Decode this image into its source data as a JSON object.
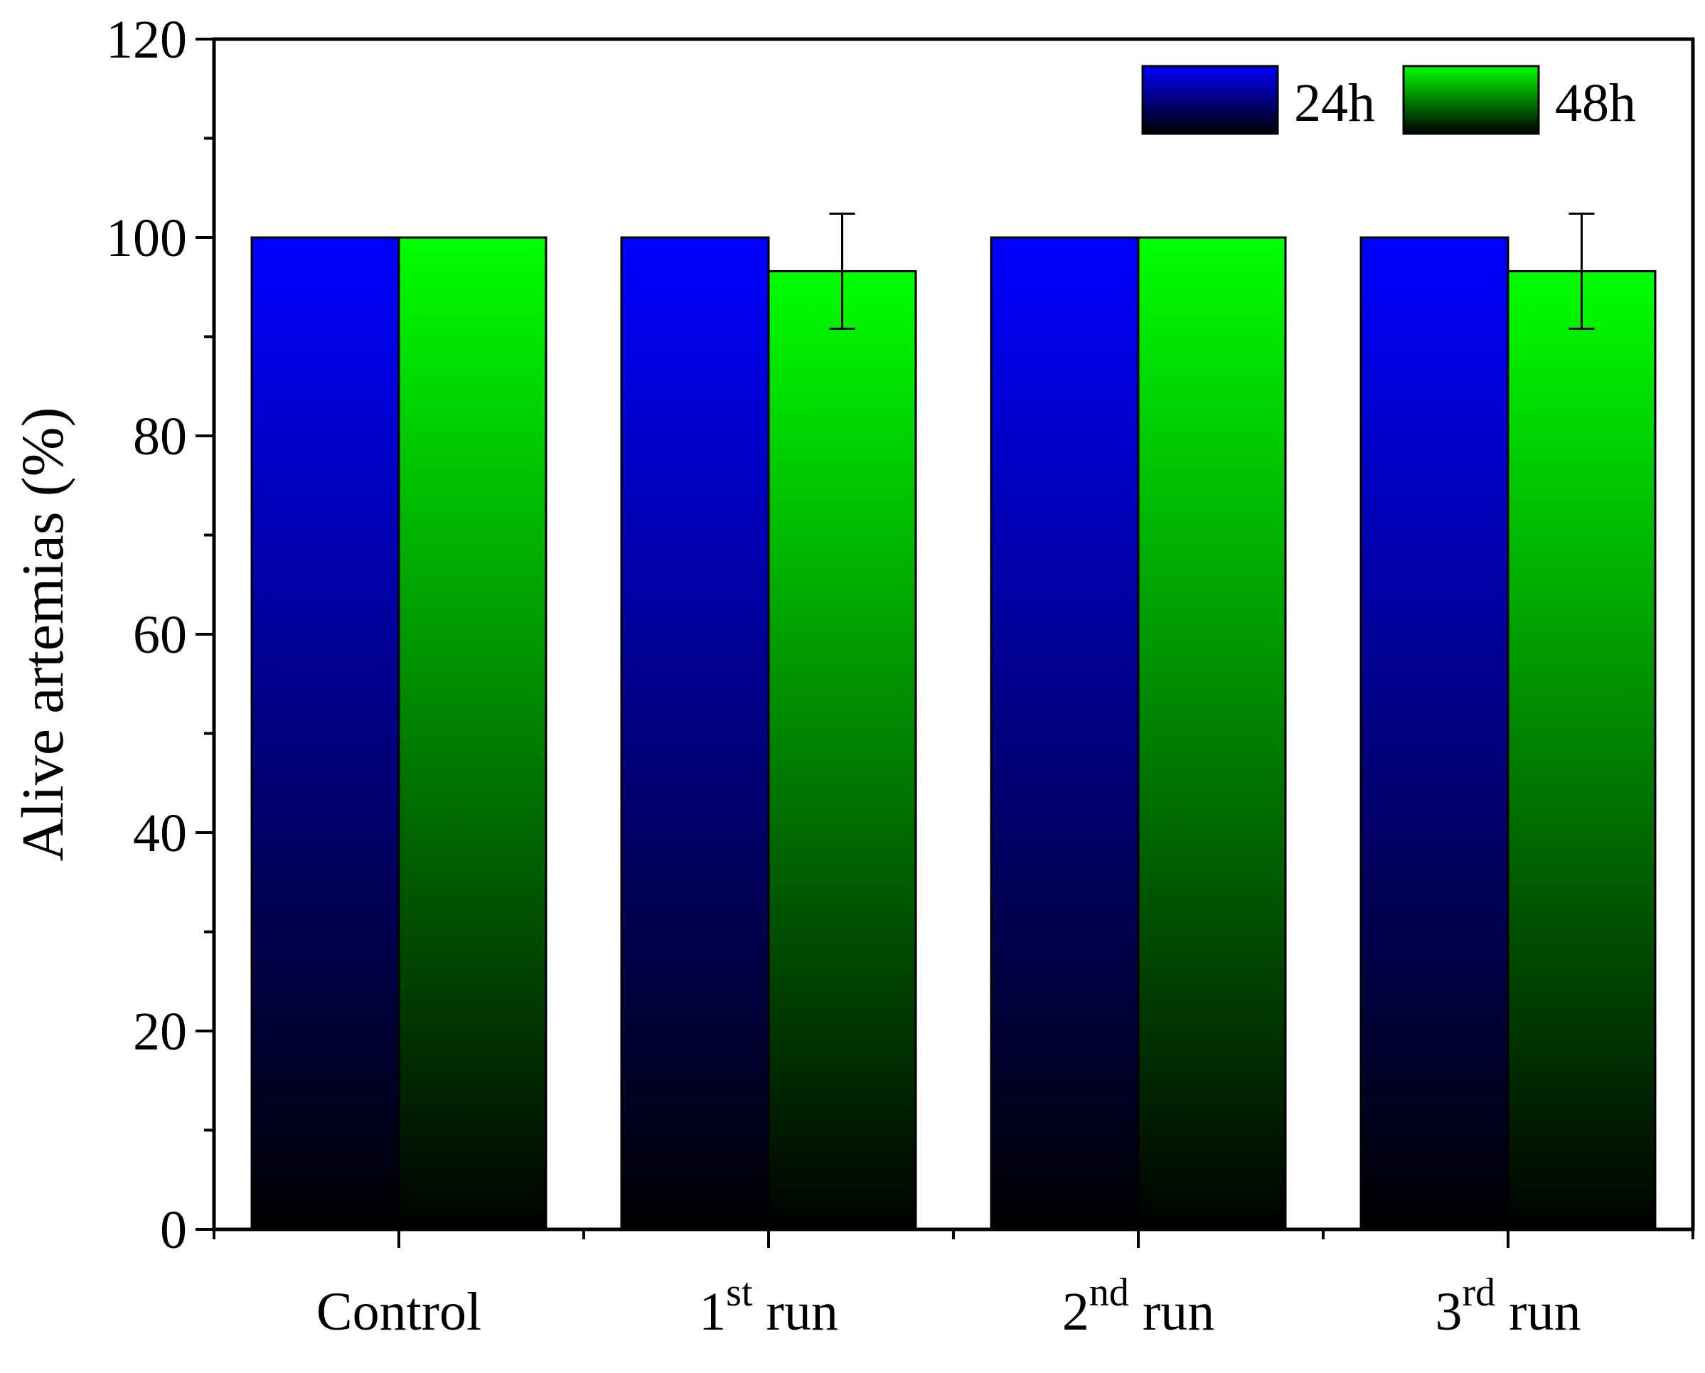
{
  "chart_data": {
    "type": "bar",
    "ylabel": "Alive artemias (%)",
    "xlabel": "",
    "ylim": [
      0,
      120
    ],
    "yticks": [
      "0",
      "20",
      "40",
      "60",
      "80",
      "100",
      "120"
    ],
    "categories": [
      {
        "main": "Control",
        "sup": "",
        "tail": ""
      },
      {
        "main": "1",
        "sup": "st",
        "tail": " run"
      },
      {
        "main": "2",
        "sup": "nd",
        "tail": " run"
      },
      {
        "main": "3",
        "sup": "rd",
        "tail": " run"
      }
    ],
    "series": [
      {
        "name": "24h",
        "color_top": "#0000ff",
        "color_bottom": "#000000",
        "values": [
          100,
          100,
          100,
          100
        ],
        "errors": [
          0,
          0,
          0,
          0
        ]
      },
      {
        "name": "48h",
        "color_top": "#00ff00",
        "color_bottom": "#000000",
        "values": [
          100,
          96.6,
          100,
          96.6
        ],
        "errors": [
          0,
          5.8,
          0,
          5.8
        ]
      }
    ],
    "legend_position": "top-right",
    "grid": false
  }
}
